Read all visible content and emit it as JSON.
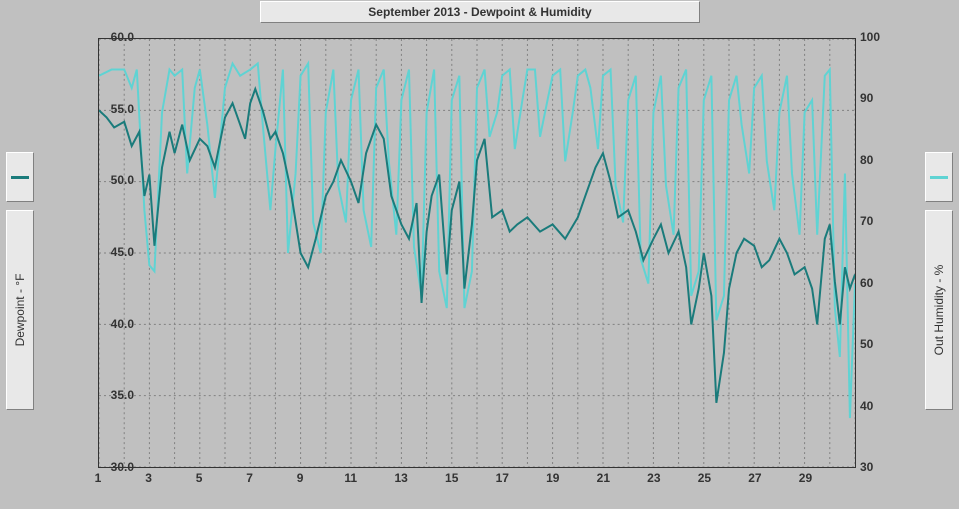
{
  "chart": {
    "type": "line",
    "title": "September 2013 - Dewpoint & Humidity",
    "background_color": "#c0c0c0",
    "panel_color": "#e8e8e8",
    "grid_color": "#808080",
    "grid_dash": "2,3",
    "axis_color": "#333333",
    "title_fontsize": 12,
    "tick_fontsize": 12,
    "label_fontsize": 12,
    "x": {
      "min": 1,
      "max": 31,
      "ticks": [
        1,
        3,
        5,
        7,
        9,
        11,
        13,
        15,
        17,
        19,
        21,
        23,
        25,
        27,
        29
      ],
      "minor_step": 1
    },
    "y_left": {
      "label": "Dewpoint - °F",
      "min": 30,
      "max": 60,
      "ticks": [
        30,
        35,
        40,
        45,
        50,
        55,
        60
      ],
      "color": "#1a7b7b",
      "line_width": 2
    },
    "y_right": {
      "label": "Out Humidity - %",
      "min": 30,
      "max": 100,
      "ticks": [
        30,
        40,
        50,
        60,
        70,
        80,
        90,
        100
      ],
      "color": "#5fd3d3",
      "line_width": 2
    },
    "dewpoint": [
      [
        1.0,
        55.0
      ],
      [
        1.3,
        54.5
      ],
      [
        1.6,
        53.8
      ],
      [
        2.0,
        54.2
      ],
      [
        2.3,
        52.5
      ],
      [
        2.6,
        53.5
      ],
      [
        2.8,
        49.0
      ],
      [
        3.0,
        50.5
      ],
      [
        3.2,
        45.5
      ],
      [
        3.5,
        51.0
      ],
      [
        3.8,
        53.5
      ],
      [
        4.0,
        52.0
      ],
      [
        4.3,
        54.0
      ],
      [
        4.6,
        51.5
      ],
      [
        5.0,
        53.0
      ],
      [
        5.3,
        52.5
      ],
      [
        5.6,
        51.0
      ],
      [
        6.0,
        54.5
      ],
      [
        6.3,
        55.5
      ],
      [
        6.6,
        54.0
      ],
      [
        6.8,
        53.0
      ],
      [
        7.0,
        55.5
      ],
      [
        7.2,
        56.5
      ],
      [
        7.5,
        55.0
      ],
      [
        7.8,
        53.0
      ],
      [
        8.0,
        53.5
      ],
      [
        8.3,
        52.0
      ],
      [
        8.6,
        49.5
      ],
      [
        9.0,
        45.0
      ],
      [
        9.3,
        44.0
      ],
      [
        9.6,
        46.0
      ],
      [
        10.0,
        49.0
      ],
      [
        10.3,
        50.0
      ],
      [
        10.6,
        51.5
      ],
      [
        11.0,
        50.0
      ],
      [
        11.3,
        48.5
      ],
      [
        11.6,
        52.0
      ],
      [
        12.0,
        54.0
      ],
      [
        12.3,
        53.0
      ],
      [
        12.6,
        49.0
      ],
      [
        13.0,
        47.0
      ],
      [
        13.3,
        46.0
      ],
      [
        13.6,
        48.5
      ],
      [
        13.8,
        41.5
      ],
      [
        14.0,
        46.5
      ],
      [
        14.2,
        49.0
      ],
      [
        14.5,
        50.5
      ],
      [
        14.8,
        43.5
      ],
      [
        15.0,
        48.0
      ],
      [
        15.3,
        50.0
      ],
      [
        15.5,
        42.5
      ],
      [
        15.8,
        47.0
      ],
      [
        16.0,
        51.5
      ],
      [
        16.3,
        53.0
      ],
      [
        16.6,
        47.5
      ],
      [
        17.0,
        48.0
      ],
      [
        17.3,
        46.5
      ],
      [
        17.6,
        47.0
      ],
      [
        18.0,
        47.5
      ],
      [
        18.5,
        46.5
      ],
      [
        19.0,
        47.0
      ],
      [
        19.5,
        46.0
      ],
      [
        20.0,
        47.5
      ],
      [
        20.3,
        49.0
      ],
      [
        20.7,
        51.0
      ],
      [
        21.0,
        52.0
      ],
      [
        21.3,
        50.0
      ],
      [
        21.6,
        47.5
      ],
      [
        22.0,
        48.0
      ],
      [
        22.3,
        46.5
      ],
      [
        22.6,
        44.5
      ],
      [
        23.0,
        46.0
      ],
      [
        23.3,
        47.0
      ],
      [
        23.6,
        45.0
      ],
      [
        24.0,
        46.5
      ],
      [
        24.3,
        44.0
      ],
      [
        24.5,
        40.0
      ],
      [
        24.8,
        42.5
      ],
      [
        25.0,
        45.0
      ],
      [
        25.3,
        42.0
      ],
      [
        25.5,
        34.5
      ],
      [
        25.8,
        38.0
      ],
      [
        26.0,
        42.5
      ],
      [
        26.3,
        45.0
      ],
      [
        26.6,
        46.0
      ],
      [
        27.0,
        45.5
      ],
      [
        27.3,
        44.0
      ],
      [
        27.6,
        44.5
      ],
      [
        28.0,
        46.0
      ],
      [
        28.3,
        45.0
      ],
      [
        28.6,
        43.5
      ],
      [
        29.0,
        44.0
      ],
      [
        29.3,
        42.5
      ],
      [
        29.5,
        40.0
      ],
      [
        29.8,
        46.0
      ],
      [
        30.0,
        47.0
      ],
      [
        30.2,
        43.0
      ],
      [
        30.4,
        40.0
      ],
      [
        30.6,
        44.0
      ],
      [
        30.8,
        42.5
      ],
      [
        31.0,
        43.5
      ]
    ],
    "humidity": [
      [
        1.0,
        94
      ],
      [
        1.5,
        95
      ],
      [
        2.0,
        95
      ],
      [
        2.3,
        92
      ],
      [
        2.5,
        95
      ],
      [
        2.8,
        72
      ],
      [
        3.0,
        63
      ],
      [
        3.2,
        62
      ],
      [
        3.5,
        88
      ],
      [
        3.8,
        95
      ],
      [
        4.0,
        94
      ],
      [
        4.3,
        95
      ],
      [
        4.5,
        78
      ],
      [
        4.8,
        92
      ],
      [
        5.0,
        95
      ],
      [
        5.3,
        86
      ],
      [
        5.6,
        74
      ],
      [
        6.0,
        92
      ],
      [
        6.3,
        96
      ],
      [
        6.6,
        94
      ],
      [
        7.0,
        95
      ],
      [
        7.3,
        96
      ],
      [
        7.5,
        86
      ],
      [
        7.8,
        72
      ],
      [
        8.0,
        82
      ],
      [
        8.3,
        95
      ],
      [
        8.5,
        65
      ],
      [
        8.8,
        78
      ],
      [
        9.0,
        94
      ],
      [
        9.3,
        96
      ],
      [
        9.5,
        70
      ],
      [
        9.8,
        65
      ],
      [
        10.0,
        88
      ],
      [
        10.3,
        95
      ],
      [
        10.5,
        76
      ],
      [
        10.8,
        70
      ],
      [
        11.0,
        90
      ],
      [
        11.3,
        95
      ],
      [
        11.5,
        72
      ],
      [
        11.8,
        66
      ],
      [
        12.0,
        92
      ],
      [
        12.3,
        95
      ],
      [
        12.5,
        80
      ],
      [
        12.8,
        68
      ],
      [
        13.0,
        90
      ],
      [
        13.3,
        95
      ],
      [
        13.5,
        66
      ],
      [
        13.8,
        58
      ],
      [
        14.0,
        88
      ],
      [
        14.3,
        95
      ],
      [
        14.5,
        62
      ],
      [
        14.8,
        56
      ],
      [
        15.0,
        90
      ],
      [
        15.3,
        94
      ],
      [
        15.5,
        56
      ],
      [
        15.8,
        62
      ],
      [
        16.0,
        92
      ],
      [
        16.3,
        95
      ],
      [
        16.5,
        84
      ],
      [
        16.8,
        88
      ],
      [
        17.0,
        94
      ],
      [
        17.3,
        95
      ],
      [
        17.5,
        82
      ],
      [
        17.8,
        90
      ],
      [
        18.0,
        95
      ],
      [
        18.3,
        95
      ],
      [
        18.5,
        84
      ],
      [
        18.8,
        90
      ],
      [
        19.0,
        94
      ],
      [
        19.3,
        95
      ],
      [
        19.5,
        80
      ],
      [
        19.8,
        88
      ],
      [
        20.0,
        94
      ],
      [
        20.3,
        95
      ],
      [
        20.5,
        92
      ],
      [
        20.8,
        82
      ],
      [
        21.0,
        94
      ],
      [
        21.3,
        95
      ],
      [
        21.5,
        76
      ],
      [
        21.8,
        70
      ],
      [
        22.0,
        90
      ],
      [
        22.3,
        94
      ],
      [
        22.5,
        64
      ],
      [
        22.8,
        60
      ],
      [
        23.0,
        88
      ],
      [
        23.3,
        94
      ],
      [
        23.5,
        76
      ],
      [
        23.8,
        68
      ],
      [
        24.0,
        92
      ],
      [
        24.3,
        95
      ],
      [
        24.5,
        58
      ],
      [
        24.8,
        62
      ],
      [
        25.0,
        90
      ],
      [
        25.3,
        94
      ],
      [
        25.5,
        54
      ],
      [
        25.8,
        58
      ],
      [
        26.0,
        90
      ],
      [
        26.3,
        94
      ],
      [
        26.5,
        86
      ],
      [
        26.8,
        78
      ],
      [
        27.0,
        92
      ],
      [
        27.3,
        94
      ],
      [
        27.5,
        80
      ],
      [
        27.8,
        72
      ],
      [
        28.0,
        88
      ],
      [
        28.3,
        94
      ],
      [
        28.5,
        78
      ],
      [
        28.8,
        68
      ],
      [
        29.0,
        88
      ],
      [
        29.3,
        90
      ],
      [
        29.5,
        68
      ],
      [
        29.8,
        94
      ],
      [
        30.0,
        95
      ],
      [
        30.2,
        56
      ],
      [
        30.4,
        48
      ],
      [
        30.6,
        78
      ],
      [
        30.8,
        38
      ],
      [
        31.0,
        60
      ]
    ]
  }
}
